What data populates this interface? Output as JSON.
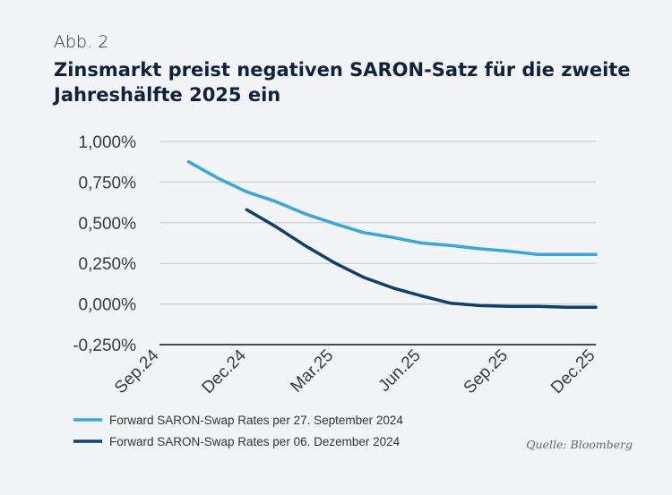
{
  "figure_label": "Abb. 2",
  "chart_data": {
    "type": "line",
    "title": "Zinsmarkt preist negativen SARON-Satz für die zweite Jahreshälfte 2025 ein",
    "xlabel": "",
    "ylabel": "",
    "x_ticks": [
      "Sep.24",
      "Dec.24",
      "Mar.25",
      "Jun.25",
      "Sep.25",
      "Dec.25"
    ],
    "y_ticks": [
      1.0,
      0.75,
      0.5,
      0.25,
      0.0,
      -0.25
    ],
    "y_tick_labels": [
      "1,000%",
      "0,750%",
      "0,500%",
      "0,250%",
      "0,000%",
      "-0,250%"
    ],
    "ylim": [
      -0.25,
      1.0
    ],
    "xlim": [
      0,
      15
    ],
    "grid": true,
    "legend_position": "bottom-left",
    "series": [
      {
        "name": "Forward SARON-Swap Rates per 27. September 2024",
        "color": "#35a8df",
        "x": [
          1,
          2,
          3,
          4,
          5,
          6,
          7,
          8,
          9,
          10,
          11,
          12,
          13,
          14,
          15
        ],
        "values": [
          0.875,
          0.775,
          0.69,
          0.63,
          0.555,
          0.495,
          0.44,
          0.41,
          0.375,
          0.36,
          0.34,
          0.325,
          0.305,
          0.305,
          0.305
        ]
      },
      {
        "name": "Forward SARON-Swap Rates per 06. Dezember 2024",
        "color": "#0f3e73",
        "x": [
          3,
          4,
          5,
          6,
          7,
          8,
          9,
          10,
          11,
          12,
          13,
          14,
          15
        ],
        "values": [
          0.58,
          0.475,
          0.36,
          0.255,
          0.165,
          0.1,
          0.05,
          0.005,
          -0.01,
          -0.015,
          -0.015,
          -0.02,
          -0.02
        ]
      }
    ]
  },
  "source": "Quelle: Bloomberg"
}
